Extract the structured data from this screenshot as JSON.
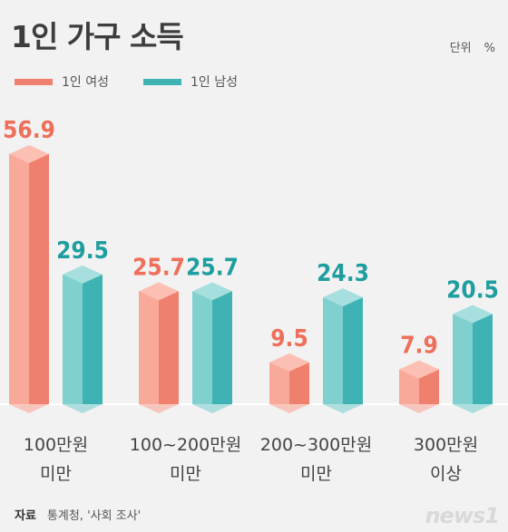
{
  "unit": {
    "label": "단위",
    "symbol": "%"
  },
  "source": {
    "label": "자료",
    "text": "통계청, '사회 조사'"
  },
  "logo": {
    "text": "news1"
  },
  "colors": {
    "female": "#f0806e",
    "male": "#3fb3b3",
    "baseline": "#ffffff"
  },
  "chart_data": {
    "type": "bar",
    "title": "1인 가구 소득",
    "categories": [
      [
        "100만원",
        "미만"
      ],
      [
        "100~200만원",
        "미만"
      ],
      [
        "200~300만원",
        "미만"
      ],
      [
        "300만원",
        "이상"
      ]
    ],
    "series": [
      {
        "name": "1인 여성",
        "values": [
          56.9,
          25.7,
          9.5,
          7.9
        ]
      },
      {
        "name": "1인 남성",
        "values": [
          29.5,
          25.7,
          24.3,
          20.5
        ]
      }
    ],
    "value_labels": [
      [
        "56.9",
        "25.7",
        "9.5",
        "7.9"
      ],
      [
        "29.5",
        "25.7",
        "24.3",
        "20.5"
      ]
    ],
    "ylim": [
      0,
      60
    ],
    "xlabel": "",
    "ylabel": "",
    "grid": false,
    "legend": "top-left"
  }
}
